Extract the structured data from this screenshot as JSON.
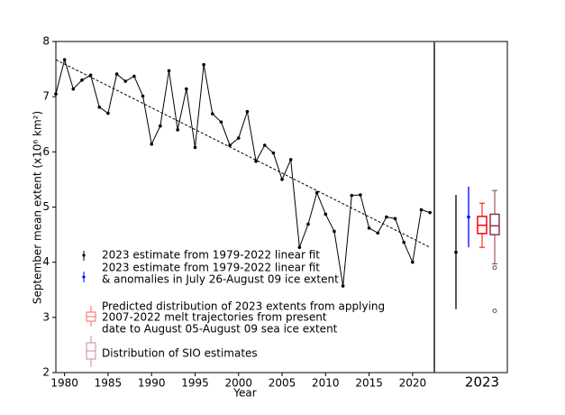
{
  "chart_data": {
    "type": "line",
    "x_label": "Year",
    "y_label": "September mean extent (x10⁶ km²)",
    "x": [
      1979,
      1980,
      1981,
      1982,
      1983,
      1984,
      1985,
      1986,
      1987,
      1988,
      1989,
      1990,
      1991,
      1992,
      1993,
      1994,
      1995,
      1996,
      1997,
      1998,
      1999,
      2000,
      2001,
      2002,
      2003,
      2004,
      2005,
      2006,
      2007,
      2008,
      2009,
      2010,
      2011,
      2012,
      2013,
      2014,
      2015,
      2016,
      2017,
      2018,
      2019,
      2020,
      2021,
      2022
    ],
    "values": [
      7.05,
      7.67,
      7.14,
      7.3,
      7.39,
      6.81,
      6.7,
      7.41,
      7.28,
      7.37,
      7.01,
      6.14,
      6.47,
      7.47,
      6.4,
      7.14,
      6.08,
      7.58,
      6.69,
      6.54,
      6.12,
      6.25,
      6.73,
      5.83,
      6.12,
      5.98,
      5.5,
      5.86,
      4.27,
      4.69,
      5.26,
      4.87,
      4.56,
      3.57,
      5.21,
      5.22,
      4.62,
      4.53,
      4.82,
      4.79,
      4.36,
      4.0,
      4.95,
      4.9
    ],
    "color": "#000000",
    "trend": {
      "x": [
        1979,
        2022
      ],
      "values": [
        7.67,
        4.27
      ],
      "color": "#000000"
    },
    "xlim": [
      1979,
      2022.5
    ],
    "xticks": [
      1980,
      1985,
      1990,
      1995,
      2000,
      2005,
      2010,
      2015,
      2020
    ],
    "ylim": [
      2,
      8
    ],
    "yticks": [
      2,
      3,
      4,
      5,
      6,
      7,
      8
    ],
    "year_label": "2023",
    "estimates": [
      {
        "name": [
          "2023 estimate from 1979-2022 linear fit"
        ],
        "color": "#000000",
        "value": 4.18,
        "low": 3.15,
        "high": 5.22
      },
      {
        "name": [
          "2023 estimate from 1979-2022 linear fit",
          "& anomalies in July 26-August 09 ice extent"
        ],
        "color": "#0000ff",
        "value": 4.82,
        "low": 4.27,
        "high": 5.37
      }
    ],
    "boxes": [
      {
        "name": [
          "Predicted distribution of 2023 extents from applying",
          "2007-2022 melt trajectories from present",
          "date to August 05-August 09 sea ice extent"
        ],
        "color": "#ff0000",
        "whisker_low": 4.27,
        "q1": 4.52,
        "median": 4.67,
        "q3": 4.83,
        "whisker_high": 5.07,
        "outliers": []
      },
      {
        "name": [
          "Distribution of SIO estimates"
        ],
        "color": "#8b3a4a",
        "whisker_low": 3.97,
        "q1": 4.5,
        "median": 4.66,
        "q3": 4.87,
        "whisker_high": 5.3,
        "outliers": [
          3.9,
          3.12
        ]
      }
    ]
  }
}
